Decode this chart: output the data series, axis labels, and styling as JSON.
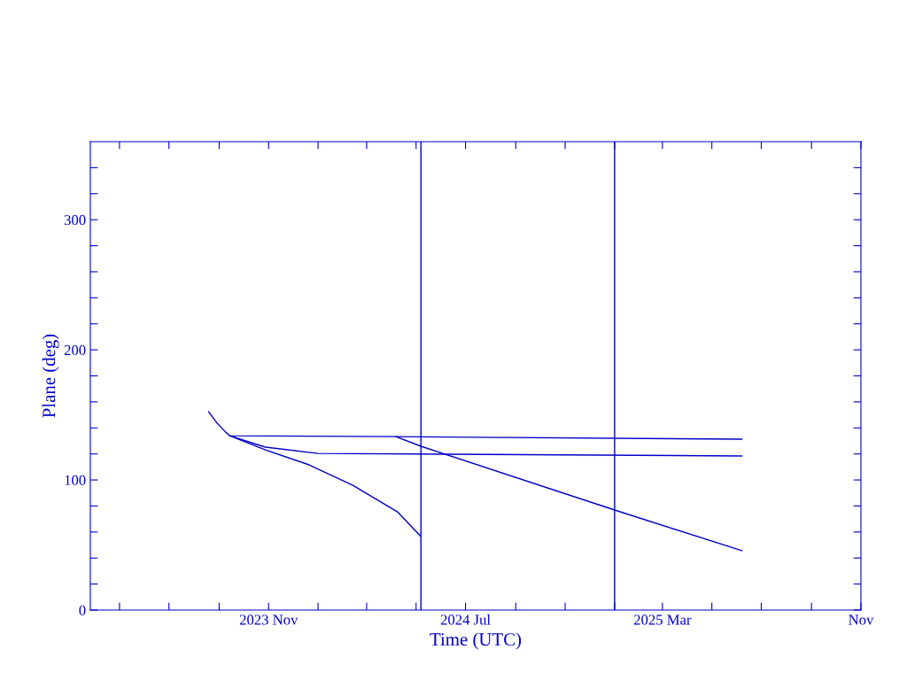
{
  "chart_data": {
    "type": "line",
    "xlabel": "Time (UTC)",
    "ylabel": "Plane (deg)",
    "xlim": [
      "2023-03-26",
      "2025-11-01"
    ],
    "ylim": [
      0,
      360
    ],
    "xticks": [
      {
        "value": "2023-05-01",
        "label": null
      },
      {
        "value": "2023-07-01",
        "label": null
      },
      {
        "value": "2023-09-01",
        "label": null
      },
      {
        "value": "2023-11-01",
        "label": "2023 Nov"
      },
      {
        "value": "2024-01-01",
        "label": null
      },
      {
        "value": "2024-03-01",
        "label": null
      },
      {
        "value": "2024-05-01",
        "label": null
      },
      {
        "value": "2024-07-01",
        "label": "2024 Jul"
      },
      {
        "value": "2024-09-01",
        "label": null
      },
      {
        "value": "2024-11-01",
        "label": null
      },
      {
        "value": "2025-01-01",
        "label": null
      },
      {
        "value": "2025-03-01",
        "label": "2025 Mar"
      },
      {
        "value": "2025-05-01",
        "label": null
      },
      {
        "value": "2025-07-01",
        "label": null
      },
      {
        "value": "2025-09-01",
        "label": null
      },
      {
        "value": "2025-11-01",
        "label": "Nov"
      }
    ],
    "yticks": [
      0,
      {
        "value": 20,
        "label": null
      },
      {
        "value": 40,
        "label": null
      },
      {
        "value": 60,
        "label": null
      },
      {
        "value": 80,
        "label": null
      },
      100,
      {
        "value": 120,
        "label": null
      },
      {
        "value": 140,
        "label": null
      },
      {
        "value": 160,
        "label": null
      },
      {
        "value": 180,
        "label": null
      },
      200,
      {
        "value": 220,
        "label": null
      },
      {
        "value": 240,
        "label": null
      },
      {
        "value": 260,
        "label": null
      },
      {
        "value": 280,
        "label": null
      },
      300,
      {
        "value": 320,
        "label": null
      },
      {
        "value": 340,
        "label": null
      }
    ],
    "grid": false,
    "legend": false,
    "marker": "none",
    "line_style": "solid",
    "series": [
      {
        "color": "#0000c8",
        "x": [
          "2023-08-19",
          "2023-08-29",
          "2023-09-09",
          "2023-09-14",
          "2024-04-06",
          "2025-06-07"
        ],
        "values": [
          152.4,
          144,
          136.7,
          134,
          133.3,
          131.3
        ]
      },
      {
        "color": "#0000c8",
        "x": [
          "2023-09-14",
          "2023-10-28",
          "2024-01-01",
          "2025-06-07"
        ],
        "values": [
          134,
          125.2,
          120.4,
          118.4
        ]
      },
      {
        "color": "#0000c8",
        "x": [
          "2023-09-14",
          "2023-10-28",
          "2023-12-21",
          "2024-02-13",
          "2024-04-08",
          "2024-05-07"
        ],
        "values": [
          134,
          123.1,
          111.6,
          95.9,
          75.5,
          56.5
        ]
      },
      {
        "color": "#0000c8",
        "x": [
          "2024-04-06",
          "2024-05-07",
          "2025-01-01",
          "2025-06-07"
        ],
        "values": [
          133.3,
          125.9,
          76.9,
          45.6
        ]
      }
    ],
    "ref_lines": [
      {
        "axis": "x",
        "value": "2024-05-07",
        "color": "#0000c8"
      },
      {
        "axis": "x",
        "value": "2025-01-01",
        "color": "#0000c8"
      }
    ]
  }
}
